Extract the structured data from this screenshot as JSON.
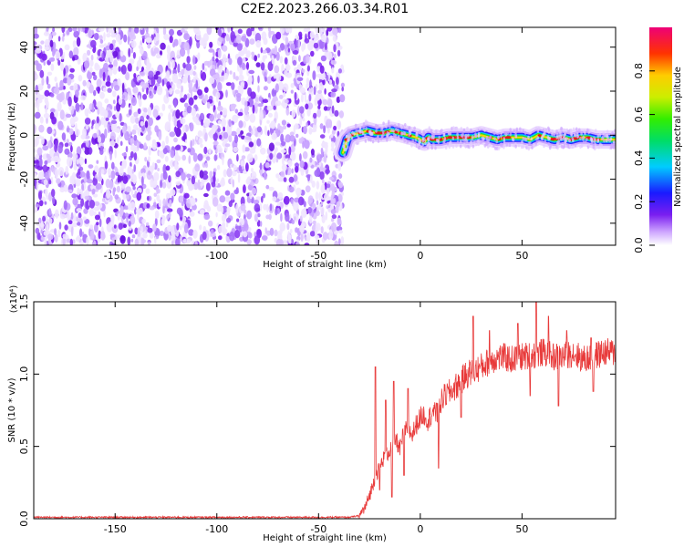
{
  "chart_data": [
    {
      "type": "heatmap",
      "title": "C2E2.2023.266.03.34.R01",
      "xlabel": "Height of straight line (km)",
      "ylabel": "Frequency (Hz)",
      "xlim": [
        -190,
        96
      ],
      "ylim": [
        -50,
        49
      ],
      "xticks": [
        -150,
        -100,
        -50,
        0,
        50
      ],
      "yticks": [
        40,
        20,
        0,
        -20,
        -40
      ],
      "noise_region_x": [
        -190,
        -38
      ],
      "signal_trace": {
        "x": [
          -38,
          -36,
          -34,
          -30,
          -26,
          -22,
          -18,
          -14,
          -10,
          -6,
          -2,
          0,
          2,
          4,
          6,
          10,
          14,
          18,
          22,
          26,
          30,
          34,
          38,
          42,
          46,
          50,
          54,
          58,
          62,
          66,
          70,
          74,
          78,
          82,
          86,
          90,
          96
        ],
        "y": [
          -8,
          -2,
          0,
          1,
          2,
          1,
          1,
          2,
          1,
          0,
          -1,
          -2,
          -3,
          -1,
          -2,
          -2,
          -1,
          -1,
          -1,
          -1,
          0,
          -1,
          -2,
          -1,
          -1,
          -1,
          -2,
          0,
          -1,
          -2,
          -1,
          -2,
          -1,
          -1,
          -2,
          -2,
          -2
        ]
      },
      "colorbar": {
        "label": "Normalized spectral amplitude",
        "range": [
          0,
          1
        ],
        "ticks": [
          "0.0",
          "0.2",
          "0.4",
          "0.6",
          "0.8"
        ],
        "tick_values": [
          0,
          0.2,
          0.4,
          0.6,
          0.8
        ]
      },
      "colors": {
        "noise": "#7a1ef0",
        "trace_core": "#e31a1c",
        "trace_mid": "#33dd22",
        "trace_edge": "#2a2aff"
      }
    },
    {
      "type": "line",
      "xlabel": "Height of straight line (km)",
      "ylabel": "SNR (10 * v/v)",
      "y_multiplier": "(x10⁴)",
      "xlim": [
        -190,
        96
      ],
      "ylim": [
        0,
        1.5
      ],
      "xticks": [
        -150,
        -100,
        -50,
        0,
        50
      ],
      "yticks": [
        "0.0",
        "0.5",
        "1.0",
        "1.5"
      ],
      "ytick_values": [
        0,
        0.5,
        1.0,
        1.5
      ],
      "color": "#e83a3a",
      "series": {
        "x": [
          -190,
          -150,
          -100,
          -50,
          -35,
          -30,
          -27,
          -24,
          -22,
          -20,
          -18,
          -16,
          -14,
          -12,
          -10,
          -8,
          -6,
          -4,
          -2,
          0,
          2,
          4,
          6,
          8,
          10,
          12,
          15,
          18,
          20,
          23,
          26,
          30,
          35,
          40,
          45,
          50,
          55,
          60,
          65,
          70,
          75,
          80,
          85,
          90,
          96
        ],
        "y": [
          0.01,
          0.01,
          0.01,
          0.01,
          0.01,
          0.02,
          0.08,
          0.2,
          0.3,
          0.35,
          0.42,
          0.45,
          0.5,
          0.55,
          0.48,
          0.6,
          0.62,
          0.58,
          0.65,
          0.7,
          0.72,
          0.68,
          0.75,
          0.7,
          0.8,
          0.85,
          0.88,
          0.92,
          0.95,
          1.0,
          1.02,
          1.05,
          1.1,
          1.12,
          1.1,
          1.12,
          1.13,
          1.15,
          1.12,
          1.12,
          1.15,
          1.1,
          1.12,
          1.15,
          1.15
        ]
      },
      "peaks": [
        [
          -22,
          1.05
        ],
        [
          -17,
          0.82
        ],
        [
          -13,
          0.95
        ],
        [
          -6,
          0.9
        ],
        [
          8,
          0.8
        ],
        [
          26,
          1.4
        ],
        [
          34,
          1.3
        ],
        [
          48,
          1.35
        ],
        [
          57,
          1.5
        ],
        [
          63,
          1.4
        ],
        [
          72,
          1.3
        ],
        [
          84,
          1.25
        ]
      ],
      "dips": [
        [
          -20,
          0.2
        ],
        [
          -14,
          0.15
        ],
        [
          -8,
          0.3
        ],
        [
          9,
          0.35
        ],
        [
          20,
          0.7
        ],
        [
          54,
          0.85
        ],
        [
          68,
          0.78
        ],
        [
          85,
          0.88
        ]
      ]
    }
  ]
}
